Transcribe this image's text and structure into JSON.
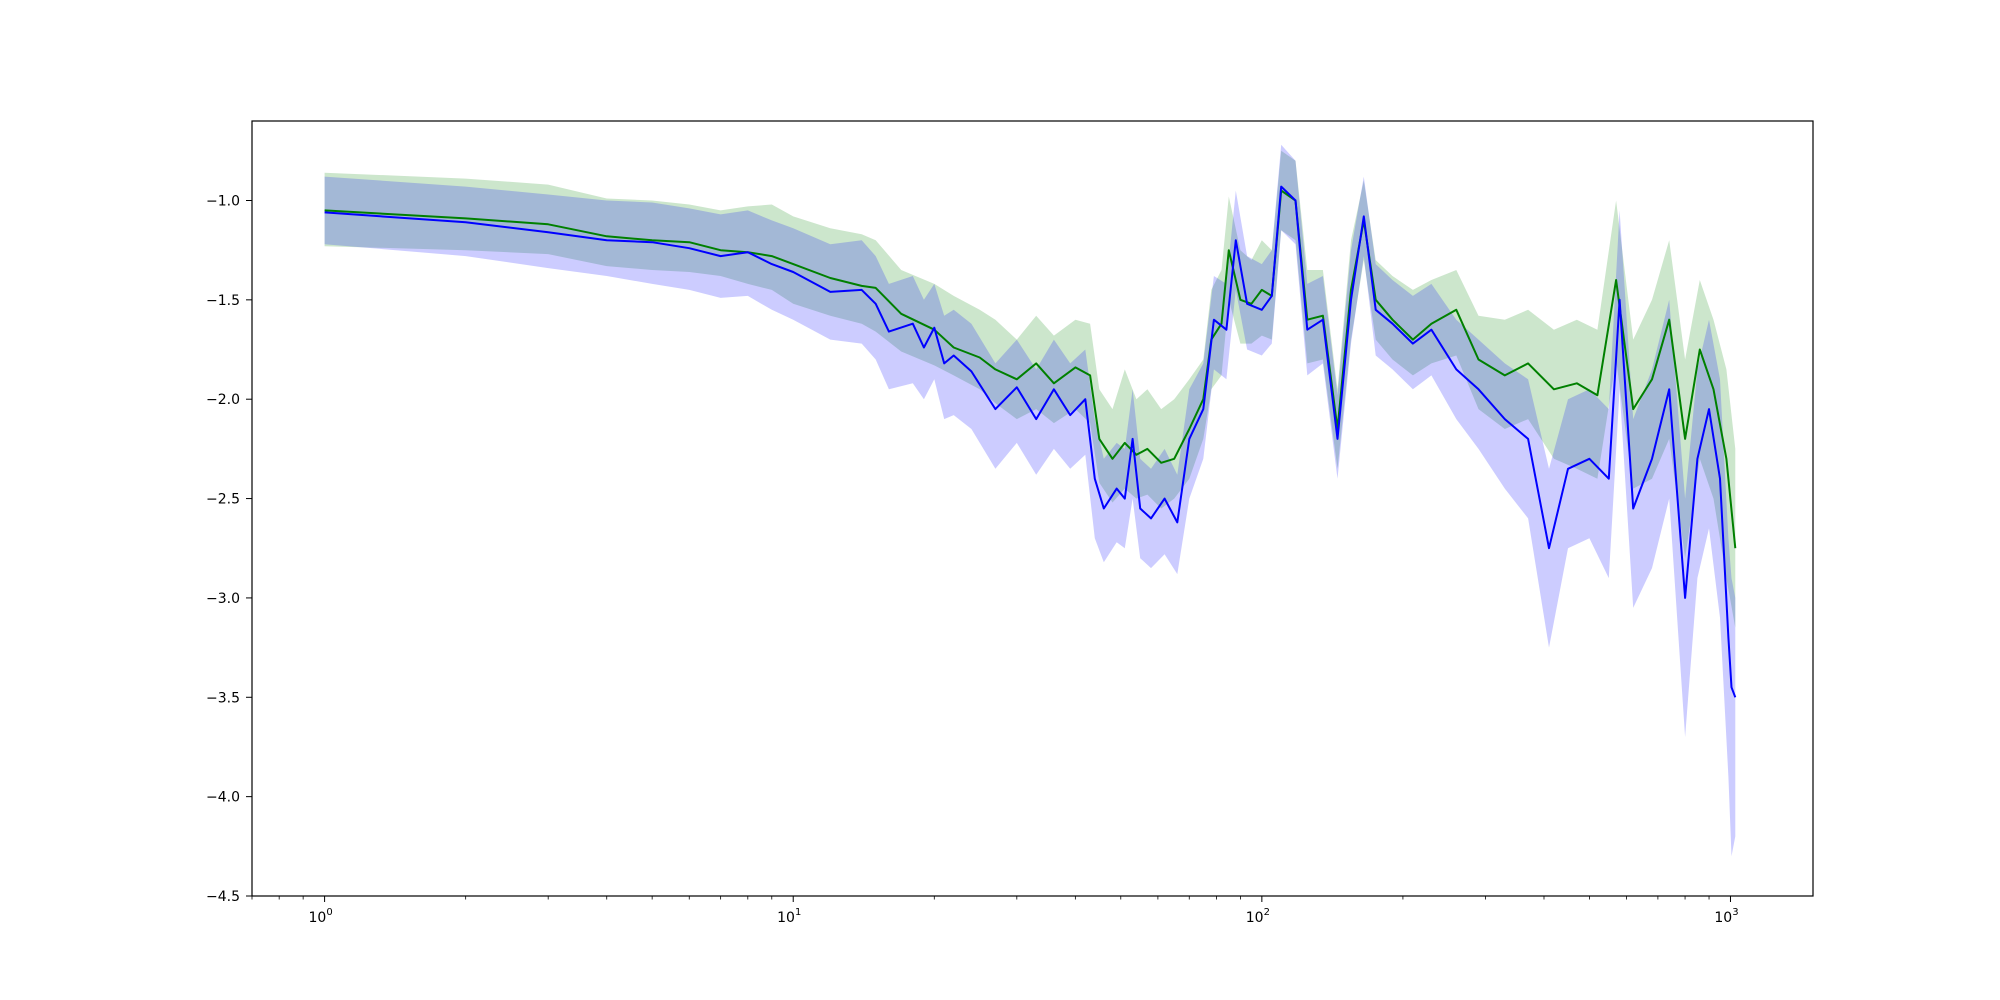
{
  "chart_data": {
    "type": "line",
    "title": "",
    "xlabel": "",
    "ylabel": "",
    "xscale": "log",
    "xlim": [
      0.7,
      1500
    ],
    "ylim": [
      -4.5,
      -0.6
    ],
    "grid": false,
    "legend": "none",
    "x_ticks": [
      {
        "value": 1,
        "mantissa": "10",
        "exp": "0"
      },
      {
        "value": 10,
        "mantissa": "10",
        "exp": "1"
      },
      {
        "value": 100,
        "mantissa": "10",
        "exp": "2"
      },
      {
        "value": 1000,
        "mantissa": "10",
        "exp": "3"
      }
    ],
    "y_ticks": [
      {
        "value": -1.0,
        "label": "−1.0"
      },
      {
        "value": -1.5,
        "label": "−1.5"
      },
      {
        "value": -2.0,
        "label": "−2.0"
      },
      {
        "value": -2.5,
        "label": "−2.5"
      },
      {
        "value": -3.0,
        "label": "−3.0"
      },
      {
        "value": -3.5,
        "label": "−3.5"
      },
      {
        "value": -4.0,
        "label": "−4.0"
      },
      {
        "value": -4.5,
        "label": "−4.5"
      }
    ],
    "series": [
      {
        "color": "#008000",
        "band_color": "#008000",
        "band_opacity": 0.2,
        "points": [
          [
            1,
            -1.05,
            -0.86,
            -1.23
          ],
          [
            2,
            -1.09,
            -0.89,
            -1.25
          ],
          [
            3,
            -1.12,
            -0.92,
            -1.27
          ],
          [
            4,
            -1.18,
            -0.99,
            -1.33
          ],
          [
            5,
            -1.2,
            -1.0,
            -1.35
          ],
          [
            6,
            -1.21,
            -1.02,
            -1.36
          ],
          [
            7,
            -1.25,
            -1.05,
            -1.38
          ],
          [
            8,
            -1.26,
            -1.03,
            -1.42
          ],
          [
            9,
            -1.28,
            -1.02,
            -1.45
          ],
          [
            10,
            -1.32,
            -1.08,
            -1.52
          ],
          [
            12,
            -1.39,
            -1.14,
            -1.58
          ],
          [
            14,
            -1.43,
            -1.17,
            -1.62
          ],
          [
            15,
            -1.44,
            -1.2,
            -1.66
          ],
          [
            17,
            -1.57,
            -1.35,
            -1.76
          ],
          [
            20,
            -1.65,
            -1.42,
            -1.83
          ],
          [
            22,
            -1.74,
            -1.48,
            -1.88
          ],
          [
            25,
            -1.79,
            -1.55,
            -1.95
          ],
          [
            27,
            -1.85,
            -1.6,
            -2.02
          ],
          [
            30,
            -1.9,
            -1.7,
            -2.1
          ],
          [
            33,
            -1.82,
            -1.58,
            -2.05
          ],
          [
            36,
            -1.92,
            -1.68,
            -2.12
          ],
          [
            40,
            -1.84,
            -1.6,
            -2.05
          ],
          [
            43,
            -1.88,
            -1.62,
            -2.12
          ],
          [
            45,
            -2.2,
            -1.95,
            -2.42
          ],
          [
            48,
            -2.3,
            -2.05,
            -2.52
          ],
          [
            51,
            -2.22,
            -1.85,
            -2.45
          ],
          [
            54,
            -2.28,
            -2.0,
            -2.5
          ],
          [
            57,
            -2.25,
            -1.95,
            -2.48
          ],
          [
            61,
            -2.32,
            -2.05,
            -2.55
          ],
          [
            65,
            -2.3,
            -2.0,
            -2.5
          ],
          [
            70,
            -2.15,
            -1.9,
            -2.4
          ],
          [
            75,
            -2.0,
            -1.8,
            -2.2
          ],
          [
            78,
            -1.7,
            -1.45,
            -1.95
          ],
          [
            82,
            -1.62,
            -1.35,
            -1.88
          ],
          [
            85,
            -1.25,
            -0.98,
            -1.5
          ],
          [
            90,
            -1.5,
            -1.25,
            -1.72
          ],
          [
            95,
            -1.52,
            -1.3,
            -1.72
          ],
          [
            100,
            -1.45,
            -1.2,
            -1.68
          ],
          [
            105,
            -1.48,
            -1.25,
            -1.7
          ],
          [
            110,
            -0.95,
            -0.75,
            -1.15
          ],
          [
            118,
            -1.0,
            -0.8,
            -1.2
          ],
          [
            125,
            -1.6,
            -1.35,
            -1.82
          ],
          [
            135,
            -1.58,
            -1.35,
            -1.8
          ],
          [
            145,
            -2.15,
            -1.95,
            -2.35
          ],
          [
            155,
            -1.45,
            -1.2,
            -1.7
          ],
          [
            165,
            -1.1,
            -0.9,
            -1.3
          ],
          [
            175,
            -1.5,
            -1.3,
            -1.7
          ],
          [
            190,
            -1.6,
            -1.38,
            -1.8
          ],
          [
            210,
            -1.7,
            -1.45,
            -1.88
          ],
          [
            230,
            -1.62,
            -1.4,
            -1.82
          ],
          [
            260,
            -1.55,
            -1.35,
            -1.78
          ],
          [
            290,
            -1.8,
            -1.58,
            -2.05
          ],
          [
            330,
            -1.88,
            -1.6,
            -2.15
          ],
          [
            370,
            -1.82,
            -1.55,
            -2.1
          ],
          [
            420,
            -1.95,
            -1.65,
            -2.3
          ],
          [
            470,
            -1.92,
            -1.6,
            -2.35
          ],
          [
            520,
            -1.98,
            -1.65,
            -2.4
          ],
          [
            570,
            -1.4,
            -1.0,
            -1.8
          ],
          [
            620,
            -2.05,
            -1.7,
            -2.45
          ],
          [
            680,
            -1.9,
            -1.5,
            -2.4
          ],
          [
            740,
            -1.6,
            -1.2,
            -2.2
          ],
          [
            800,
            -2.2,
            -1.8,
            -2.8
          ],
          [
            860,
            -1.75,
            -1.4,
            -2.3
          ],
          [
            920,
            -1.95,
            -1.6,
            -2.5
          ],
          [
            980,
            -2.3,
            -1.85,
            -2.9
          ],
          [
            1024,
            -2.75,
            -2.25,
            -3.15
          ]
        ]
      },
      {
        "color": "#0000ff",
        "band_color": "#0000ff",
        "band_opacity": 0.2,
        "points": [
          [
            1,
            -1.06,
            -0.88,
            -1.22
          ],
          [
            2,
            -1.11,
            -0.93,
            -1.28
          ],
          [
            3,
            -1.16,
            -0.97,
            -1.34
          ],
          [
            4,
            -1.2,
            -1.0,
            -1.38
          ],
          [
            5,
            -1.21,
            -1.01,
            -1.42
          ],
          [
            6,
            -1.24,
            -1.04,
            -1.45
          ],
          [
            7,
            -1.28,
            -1.07,
            -1.49
          ],
          [
            8,
            -1.26,
            -1.05,
            -1.48
          ],
          [
            9,
            -1.32,
            -1.1,
            -1.55
          ],
          [
            10,
            -1.36,
            -1.14,
            -1.6
          ],
          [
            12,
            -1.46,
            -1.22,
            -1.7
          ],
          [
            14,
            -1.45,
            -1.2,
            -1.72
          ],
          [
            15,
            -1.52,
            -1.28,
            -1.8
          ],
          [
            16,
            -1.66,
            -1.42,
            -1.95
          ],
          [
            18,
            -1.62,
            -1.38,
            -1.92
          ],
          [
            19,
            -1.74,
            -1.5,
            -2.0
          ],
          [
            20,
            -1.64,
            -1.42,
            -1.9
          ],
          [
            21,
            -1.82,
            -1.58,
            -2.1
          ],
          [
            22,
            -1.78,
            -1.55,
            -2.08
          ],
          [
            24,
            -1.86,
            -1.62,
            -2.15
          ],
          [
            27,
            -2.05,
            -1.82,
            -2.35
          ],
          [
            30,
            -1.94,
            -1.7,
            -2.22
          ],
          [
            33,
            -2.1,
            -1.85,
            -2.38
          ],
          [
            36,
            -1.95,
            -1.7,
            -2.25
          ],
          [
            39,
            -2.08,
            -1.82,
            -2.35
          ],
          [
            42,
            -2.0,
            -1.75,
            -2.28
          ],
          [
            44,
            -2.4,
            -2.1,
            -2.7
          ],
          [
            46,
            -2.55,
            -2.3,
            -2.82
          ],
          [
            49,
            -2.45,
            -2.22,
            -2.72
          ],
          [
            51,
            -2.5,
            -2.25,
            -2.75
          ],
          [
            53,
            -2.2,
            -1.95,
            -2.5
          ],
          [
            55,
            -2.55,
            -2.3,
            -2.8
          ],
          [
            58,
            -2.6,
            -2.35,
            -2.85
          ],
          [
            62,
            -2.5,
            -2.25,
            -2.78
          ],
          [
            66,
            -2.62,
            -2.38,
            -2.88
          ],
          [
            70,
            -2.2,
            -1.95,
            -2.5
          ],
          [
            75,
            -2.05,
            -1.82,
            -2.3
          ],
          [
            79,
            -1.6,
            -1.38,
            -1.85
          ],
          [
            84,
            -1.65,
            -1.42,
            -1.9
          ],
          [
            88,
            -1.2,
            -0.95,
            -1.45
          ],
          [
            93,
            -1.52,
            -1.28,
            -1.75
          ],
          [
            100,
            -1.55,
            -1.32,
            -1.78
          ],
          [
            105,
            -1.48,
            -1.25,
            -1.72
          ],
          [
            110,
            -0.93,
            -0.72,
            -1.15
          ],
          [
            118,
            -1.0,
            -0.8,
            -1.22
          ],
          [
            125,
            -1.65,
            -1.42,
            -1.88
          ],
          [
            135,
            -1.6,
            -1.38,
            -1.82
          ],
          [
            145,
            -2.2,
            -1.98,
            -2.4
          ],
          [
            155,
            -1.5,
            -1.25,
            -1.72
          ],
          [
            165,
            -1.08,
            -0.88,
            -1.28
          ],
          [
            175,
            -1.55,
            -1.32,
            -1.78
          ],
          [
            190,
            -1.62,
            -1.4,
            -1.85
          ],
          [
            210,
            -1.72,
            -1.48,
            -1.95
          ],
          [
            230,
            -1.65,
            -1.42,
            -1.88
          ],
          [
            260,
            -1.85,
            -1.6,
            -2.1
          ],
          [
            290,
            -1.95,
            -1.7,
            -2.25
          ],
          [
            330,
            -2.1,
            -1.82,
            -2.45
          ],
          [
            370,
            -2.2,
            -1.9,
            -2.6
          ],
          [
            410,
            -2.75,
            -2.35,
            -3.25
          ],
          [
            450,
            -2.35,
            -2.0,
            -2.75
          ],
          [
            500,
            -2.3,
            -1.95,
            -2.7
          ],
          [
            550,
            -2.4,
            -2.05,
            -2.9
          ],
          [
            580,
            -1.5,
            -1.05,
            -1.95
          ],
          [
            620,
            -2.55,
            -2.1,
            -3.05
          ],
          [
            680,
            -2.3,
            -1.85,
            -2.85
          ],
          [
            740,
            -1.95,
            -1.5,
            -2.5
          ],
          [
            800,
            -3.0,
            -2.5,
            -3.7
          ],
          [
            850,
            -2.3,
            -1.85,
            -2.9
          ],
          [
            900,
            -2.05,
            -1.6,
            -2.65
          ],
          [
            950,
            -2.4,
            -1.9,
            -3.1
          ],
          [
            990,
            -3.2,
            -2.7,
            -3.9
          ],
          [
            1005,
            -3.45,
            -2.9,
            -4.3
          ],
          [
            1024,
            -3.5,
            -3.0,
            -4.2
          ]
        ]
      }
    ]
  }
}
